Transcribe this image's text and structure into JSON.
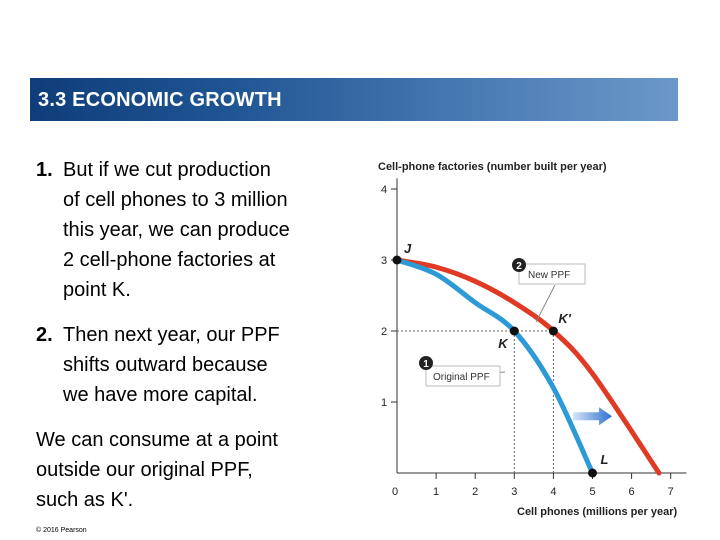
{
  "header": {
    "title": "3.3  ECONOMIC GROWTH"
  },
  "text": {
    "item1": {
      "number": "1.",
      "lines": [
        "But if we cut production",
        "of cell phones to 3 million",
        "this year, we can produce",
        "2 cell-phone factories at",
        "point K."
      ]
    },
    "item2": {
      "number": "2.",
      "lines": [
        "Then next year, our PPF",
        "shifts outward because",
        "we have more capital."
      ]
    },
    "para": {
      "lines": [
        "We can consume at a point",
        "outside our original PPF,",
        "such as K'."
      ]
    }
  },
  "copyright": "© 2016 Pearson",
  "colors": {
    "new_ppf": "#e03a24",
    "original_ppf": "#2b9ad6",
    "arrow": "#2e6fd0",
    "title_bar": "#1f5493"
  },
  "chart_data": {
    "type": "line",
    "xlabel": "Cell phones (millions per year)",
    "ylabel": "Cell-phone factories (number built per year)",
    "xlim": [
      0,
      7
    ],
    "ylim": [
      0,
      4
    ],
    "xticks": [
      "0",
      "1",
      "2",
      "3",
      "4",
      "5",
      "6",
      "7"
    ],
    "yticks": [
      "1",
      "2",
      "3",
      "4"
    ],
    "series": [
      {
        "name": "Original PPF",
        "label_number": "1",
        "color": "#2b9ad6",
        "x": [
          0,
          1,
          2,
          3,
          4,
          5
        ],
        "y": [
          3,
          2.8,
          2.4,
          2,
          1.2,
          0
        ]
      },
      {
        "name": "New PPF",
        "label_number": "2",
        "color": "#e03a24",
        "x": [
          0,
          1,
          2,
          3,
          4,
          5,
          6.7
        ],
        "y": [
          3,
          2.9,
          2.7,
          2.4,
          2,
          1.4,
          0
        ]
      }
    ],
    "points": [
      {
        "label": "J",
        "x": 0,
        "y": 3
      },
      {
        "label": "K",
        "x": 3,
        "y": 2
      },
      {
        "label": "K'",
        "x": 4,
        "y": 2
      },
      {
        "label": "L",
        "x": 5,
        "y": 0
      }
    ],
    "annotation_arrow": {
      "from_x": 4.5,
      "to_x": 5.5,
      "y": 0.8
    }
  }
}
